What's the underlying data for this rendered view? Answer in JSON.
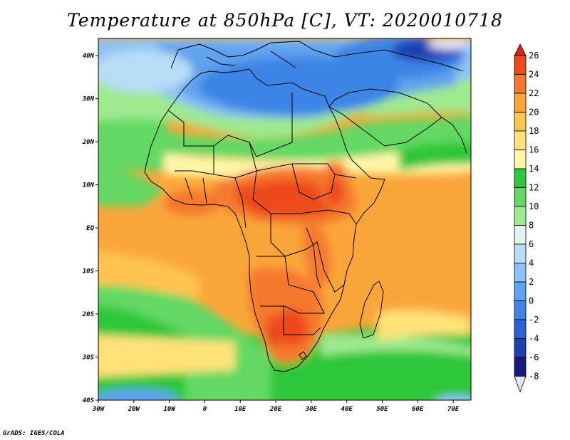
{
  "title": "Temperature at 850hPa [C], VT: 2020010718",
  "credit": "GrADS: IGES/COLA",
  "map": {
    "lon_range": [
      -30,
      75
    ],
    "lat_range": [
      -40,
      44
    ],
    "lon_ticks": [
      {
        "value": -30,
        "label": "30W"
      },
      {
        "value": -20,
        "label": "20W"
      },
      {
        "value": -10,
        "label": "10W"
      },
      {
        "value": 0,
        "label": "0"
      },
      {
        "value": 10,
        "label": "10E"
      },
      {
        "value": 20,
        "label": "20E"
      },
      {
        "value": 30,
        "label": "30E"
      },
      {
        "value": 40,
        "label": "40E"
      },
      {
        "value": 50,
        "label": "50E"
      },
      {
        "value": 60,
        "label": "60E"
      },
      {
        "value": 70,
        "label": "70E"
      }
    ],
    "lat_ticks": [
      {
        "value": 40,
        "label": "40N"
      },
      {
        "value": 30,
        "label": "30N"
      },
      {
        "value": 20,
        "label": "20N"
      },
      {
        "value": 10,
        "label": "10N"
      },
      {
        "value": 0,
        "label": "EQ"
      },
      {
        "value": -10,
        "label": "10S"
      },
      {
        "value": -20,
        "label": "20S"
      },
      {
        "value": -30,
        "label": "30S"
      },
      {
        "value": -40,
        "label": "40S"
      }
    ]
  },
  "colorbar": {
    "levels": [
      -8,
      -6,
      -4,
      -2,
      0,
      2,
      4,
      6,
      8,
      10,
      12,
      14,
      16,
      18,
      20,
      22,
      24,
      26
    ],
    "labels": [
      "-8",
      "-6",
      "-4",
      "-2",
      "0",
      "2",
      "4",
      "6",
      "8",
      "10",
      "12",
      "14",
      "16",
      "18",
      "20",
      "22",
      "24",
      "26"
    ],
    "colors": [
      "#e6e6fa",
      "#1a1a7a",
      "#1e3fb3",
      "#2a62d6",
      "#3d84e6",
      "#5ea3ef",
      "#8cc2f5",
      "#b7dcf8",
      "#e1f5ee",
      "#9fe98f",
      "#64d864",
      "#2fc63a",
      "#fff7a8",
      "#ffe27a",
      "#ffc34f",
      "#fba63a",
      "#f6782e",
      "#ec4a1f",
      "#d9251a"
    ]
  }
}
